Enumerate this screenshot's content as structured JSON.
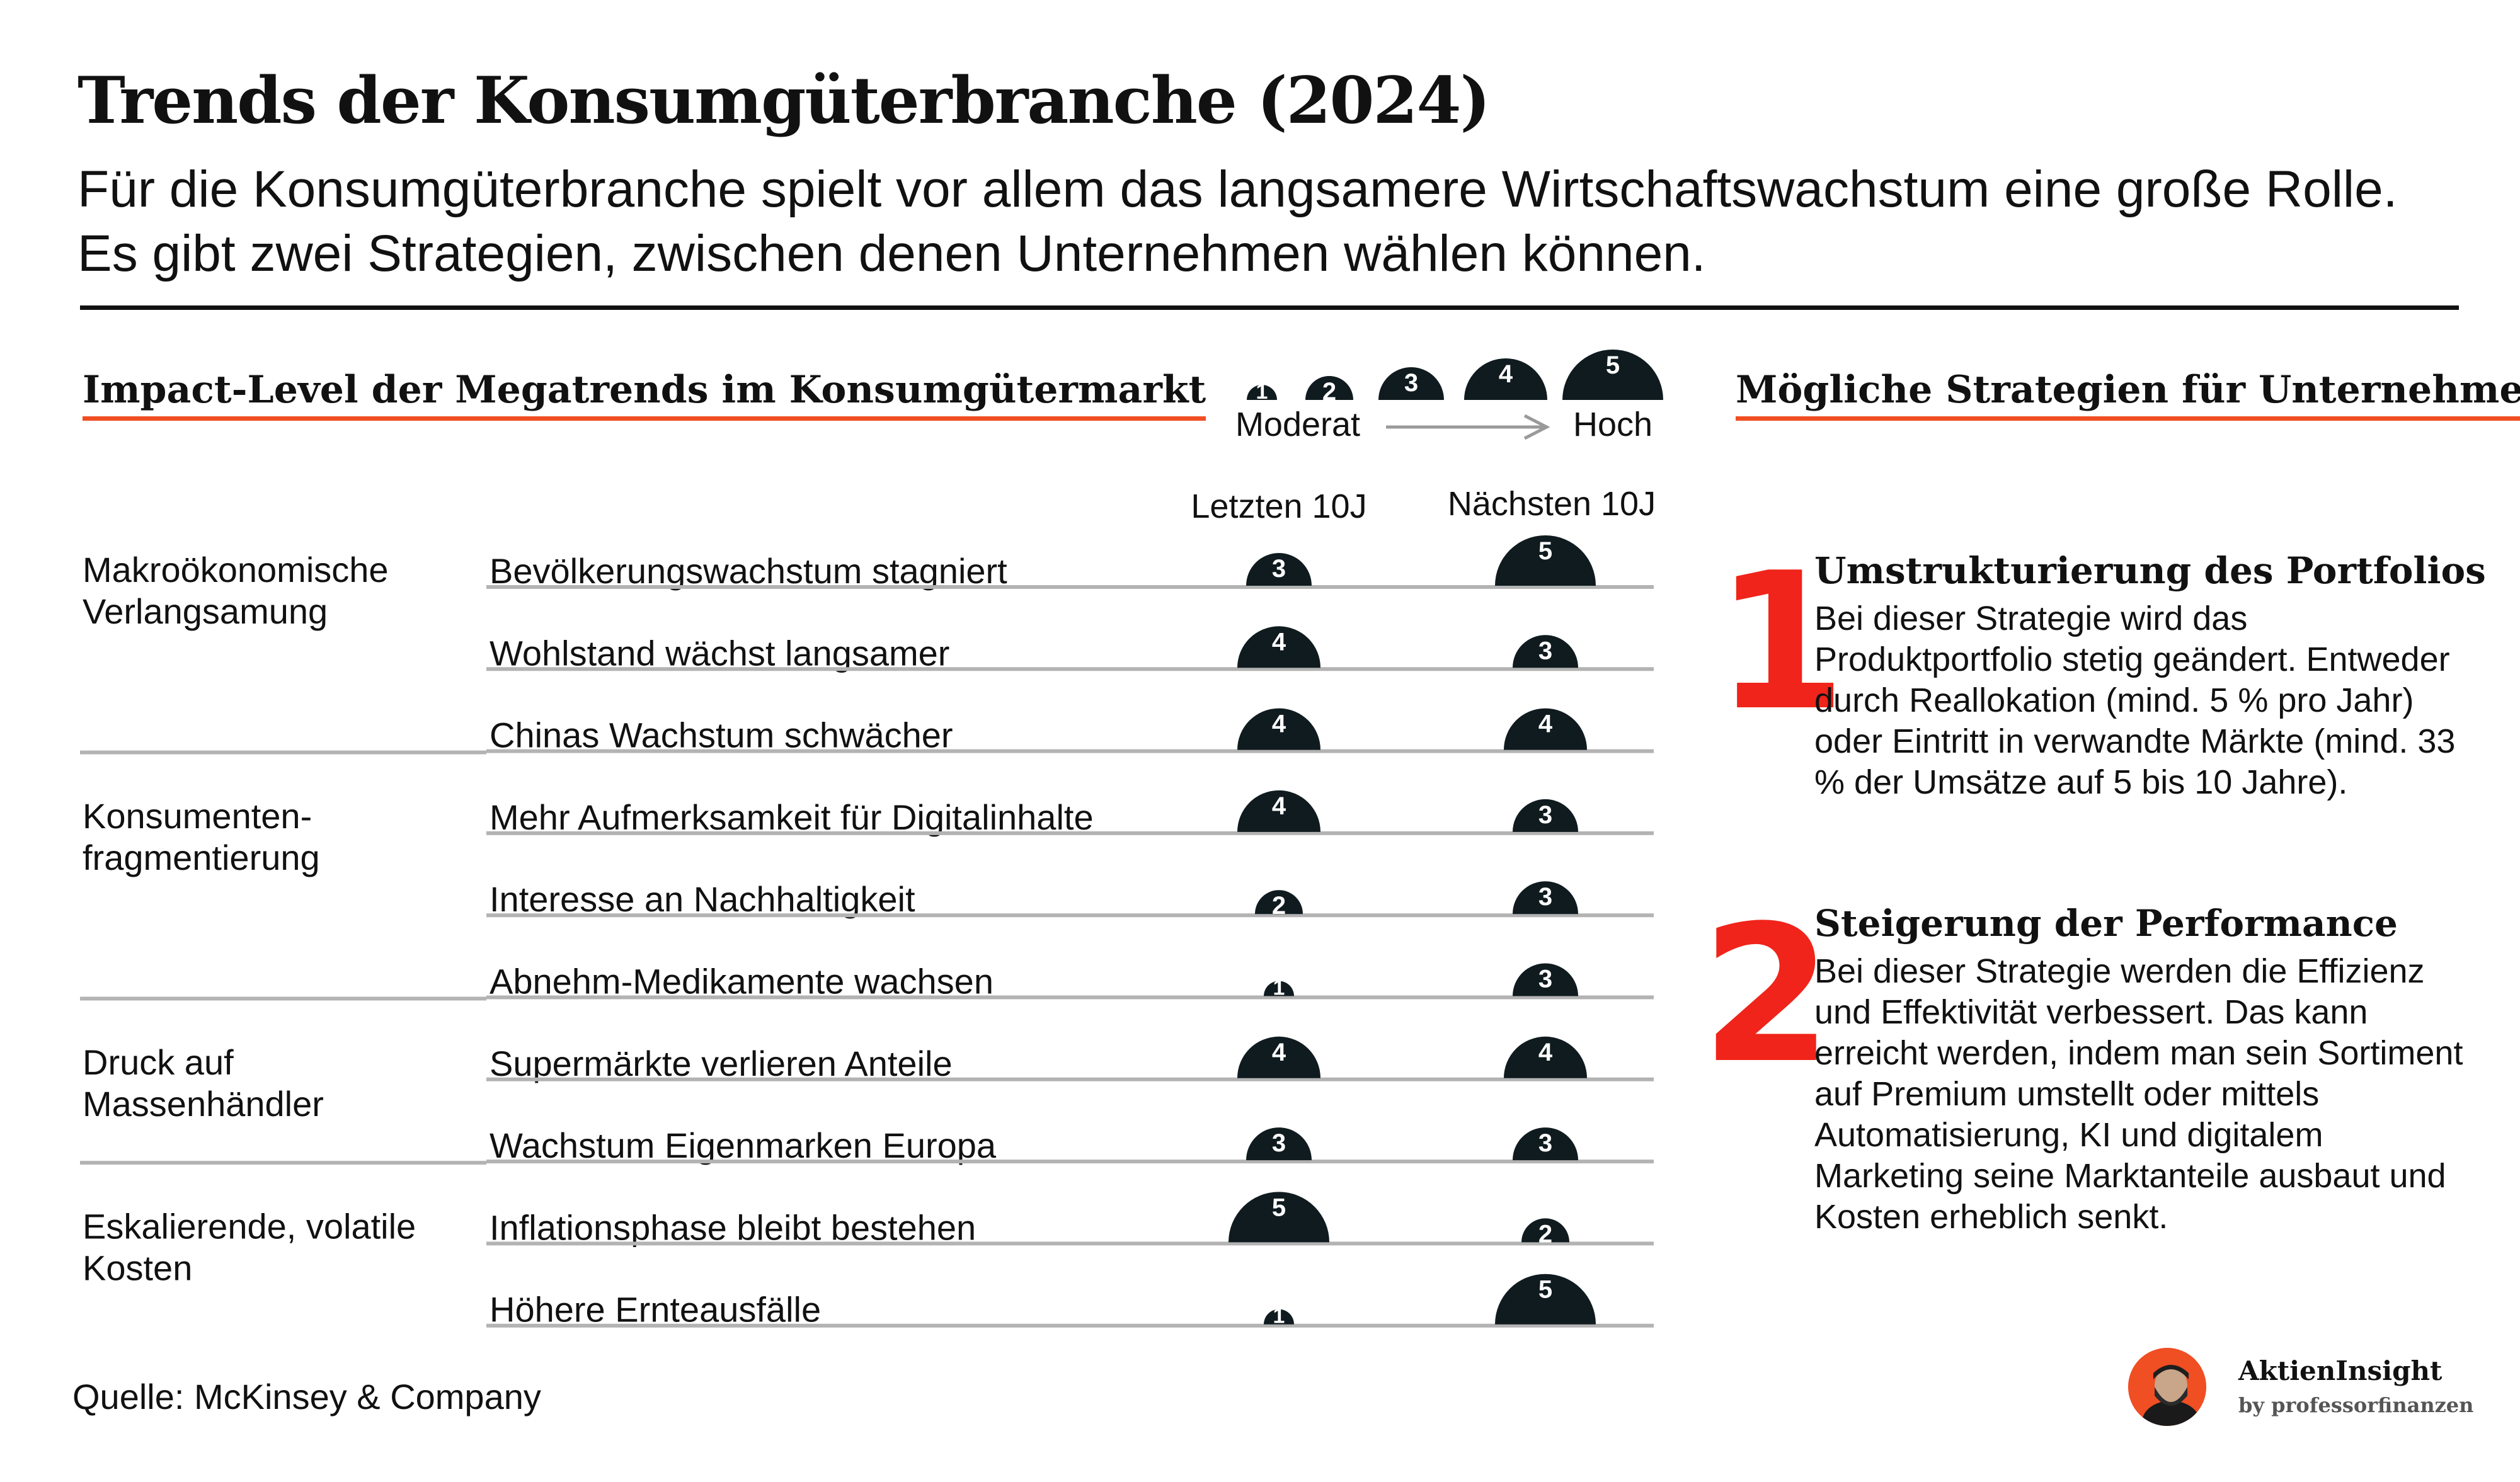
{
  "header": {
    "title": "Trends der Konsumgüterbranche (2024)",
    "subtitle": "Für die Konsumgüterbranche spielt vor allem das langsamere Wirtschaftswachstum eine große Rolle. Es gibt zwei Strategien, zwischen denen Unternehmen wählen können."
  },
  "left_heading": "Impact-Level der Megatrends im Konsumgütermarkt",
  "right_heading": "Mögliche Strategien für Unternehmen",
  "legend": {
    "levels": [
      1,
      2,
      3,
      4,
      5
    ],
    "low_label": "Moderat",
    "high_label": "Hoch"
  },
  "colors": {
    "accent": "#f04e23",
    "number_red": "#f0241a",
    "semicircle": "#0f1b1f",
    "row_line": "#b3b3b3"
  },
  "chart_data": {
    "type": "table",
    "columns": [
      "Letzten 10J",
      "Nächsten 10J"
    ],
    "scale": [
      1,
      5
    ],
    "groups": [
      {
        "name": "Makroökonomische Verlangsamung",
        "name_lines": [
          "Makroökonomische",
          "Verlangsamung"
        ],
        "rows": [
          {
            "label": "Bevölkerungswachstum stagniert",
            "past": 3,
            "future": 5
          },
          {
            "label": "Wohlstand wächst langsamer",
            "past": 4,
            "future": 3
          },
          {
            "label": "Chinas Wachstum schwächer",
            "past": 4,
            "future": 4
          }
        ]
      },
      {
        "name": "Konsumenten-fragmentierung",
        "name_lines": [
          "Konsumenten-",
          "fragmentierung"
        ],
        "rows": [
          {
            "label": "Mehr Aufmerksamkeit für Digitalinhalte",
            "past": 4,
            "future": 3
          },
          {
            "label": "Interesse an Nachhaltigkeit",
            "past": 2,
            "future": 3
          },
          {
            "label": "Abnehm-Medikamente wachsen",
            "past": 1,
            "future": 3
          }
        ]
      },
      {
        "name": "Druck auf Massenhändler",
        "name_lines": [
          "Druck auf",
          "Massenhändler"
        ],
        "rows": [
          {
            "label": "Supermärkte verlieren Anteile",
            "past": 4,
            "future": 4
          },
          {
            "label": "Wachstum Eigenmarken Europa",
            "past": 3,
            "future": 3
          }
        ]
      },
      {
        "name": "Eskalierende, volatile Kosten",
        "name_lines": [
          "Eskalierende, volatile",
          "Kosten"
        ],
        "rows": [
          {
            "label": "Inflationsphase bleibt bestehen",
            "past": 5,
            "future": 2
          },
          {
            "label": "Höhere Ernteausfälle",
            "past": 1,
            "future": 5
          }
        ]
      }
    ]
  },
  "strategies": [
    {
      "number": "1",
      "title": "Umstrukturierung des Portfolios",
      "body": "Bei dieser Strategie wird das Produktportfolio stetig geändert. Entweder durch Reallokation (mind. 5 % pro Jahr) oder Eintritt in verwandte Märkte (mind. 33 % der Umsätze auf 5 bis 10 Jahre)."
    },
    {
      "number": "2",
      "title": "Steigerung der Performance",
      "body": "Bei dieser Strategie werden die Effizienz und Effektivität verbessert. Das kann erreicht werden, indem man sein Sortiment auf Premium umstellt oder mittels Automatisierung, KI und digitalem Marketing seine Marktanteile ausbaut und Kosten erheblich senkt."
    }
  ],
  "footer": {
    "source": "Quelle: McKinsey & Company",
    "brand_name": "AktienInsight",
    "brand_by": "by professorfinanzen"
  }
}
